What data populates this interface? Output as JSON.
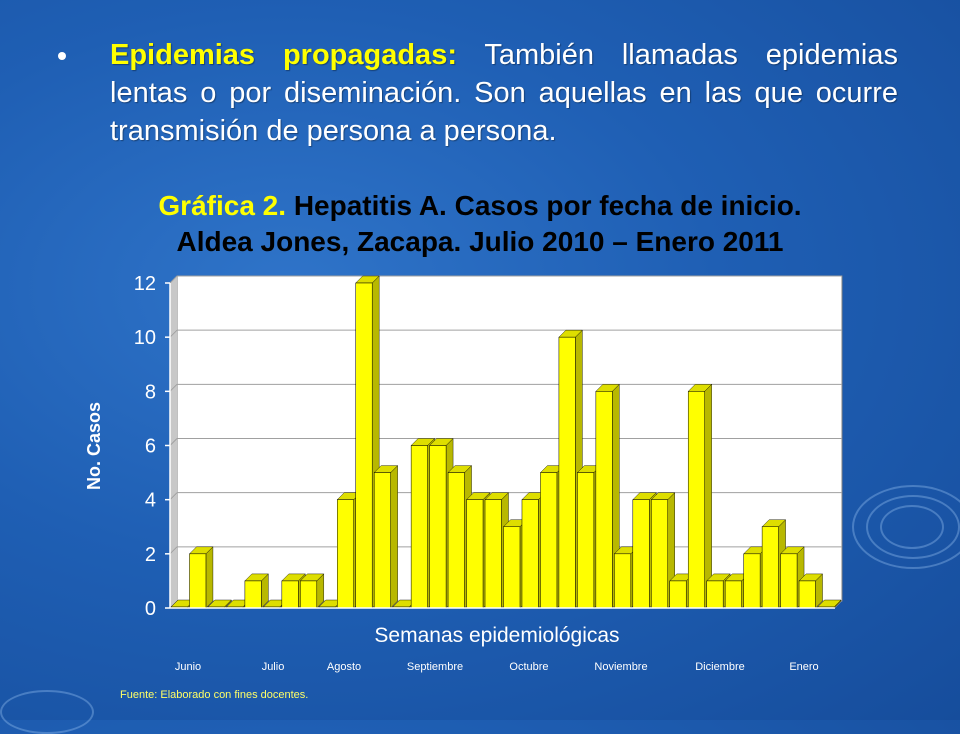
{
  "bullet": {
    "term": "Epidemias propagadas:",
    "text": " También llamadas epidemias lentas o por diseminación. Son aquellas en las que ocurre transmisión de persona a persona."
  },
  "chart_title": {
    "highlight": "Gráfica 2.",
    "line1": " Hepatitis A. Casos por fecha de inicio.",
    "line2": "Aldea Jones, Zacapa. Julio 2010 – Enero 2011"
  },
  "colors": {
    "bar": "#ffff00",
    "accent_bar": "#00aa00",
    "title_highlight": "#ffff00",
    "source": "#ffff66"
  },
  "chart_data": {
    "type": "bar",
    "ylabel": "No. Casos",
    "xlabel": "Semanas epidemiológicas",
    "ylim": [
      0,
      12
    ],
    "yticks": [
      "0",
      "2",
      "4",
      "6",
      "8",
      "10",
      "12"
    ],
    "grid": true,
    "values": [
      0,
      2,
      0,
      0,
      1,
      0,
      1,
      1,
      0,
      4,
      12,
      5,
      0,
      6,
      6,
      5,
      4,
      4,
      3,
      4,
      5,
      10,
      5,
      8,
      2,
      4,
      4,
      1,
      8,
      1,
      1,
      2,
      3,
      2,
      1,
      0
    ],
    "month_labels": [
      "Junio",
      "Julio",
      "Agosto",
      "Septiembre",
      "Octubre",
      "Noviembre",
      "Diciembre",
      "Enero"
    ]
  },
  "source_text": "Fuente: Elaborado con fines docentes."
}
